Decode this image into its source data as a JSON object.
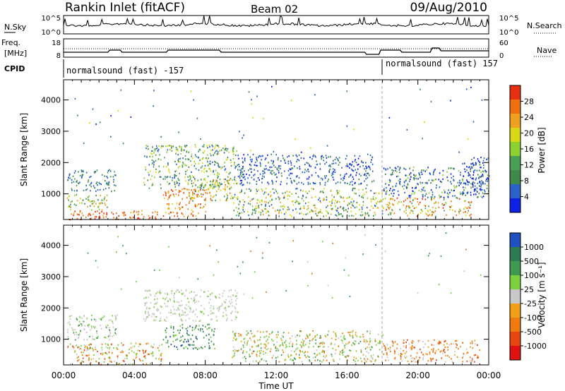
{
  "header": {
    "station": "Rankin Inlet (fitACF)",
    "beam": "Beam 02",
    "date": "09/Aug/2010"
  },
  "noise_panel": {
    "left_label": "N.Sky",
    "right_label": "N.Search",
    "left_ticks": [
      "10^5",
      "10^0"
    ],
    "right_ticks": [
      "10^5",
      "10^0"
    ]
  },
  "freq_panel": {
    "left_label_1": "Freq.",
    "left_label_2": "[MHz]",
    "right_label": "Nave",
    "left_ticks": [
      "18",
      "8"
    ],
    "right_ticks": [
      "60",
      "0"
    ]
  },
  "cpid_panel": {
    "label": "CPID",
    "segments": [
      {
        "name": "normalsound (fast) -157",
        "start_hour": 0
      },
      {
        "name": "normalsound (fast) 157",
        "start_hour": 18
      }
    ]
  },
  "colors": {
    "power_scale": [
      "#0d22e6",
      "#2a62c8",
      "#3f8a4a",
      "#4aa052",
      "#8bd130",
      "#d8d816",
      "#f0a020",
      "#ee7010",
      "#e83010"
    ],
    "velocity_scale": [
      "#2050c0",
      "#2e7a52",
      "#3e9a4e",
      "#7cd040",
      "#c8c8c8",
      "#f0a018",
      "#ee7a10",
      "#e84510",
      "#e01010"
    ]
  },
  "chart_data": [
    {
      "type": "heatmap",
      "title": "",
      "quantity": "Power",
      "xlabel": "",
      "ylabel": "Slant Range [km]",
      "xlim_hours": [
        0,
        24
      ],
      "ylim_km": [
        180,
        4600
      ],
      "y_ticks": [
        "4000",
        "3000",
        "2000",
        "1000"
      ],
      "colorbar_label": "Power [dB]",
      "colorbar_ticks": [
        "28",
        "24",
        "20",
        "16",
        "12",
        "8",
        "4"
      ],
      "colorbar_range": [
        0,
        32
      ]
    },
    {
      "type": "heatmap",
      "title": "",
      "quantity": "Velocity",
      "xlabel": "Time UT",
      "ylabel": "Slant Range [km]",
      "xlim_hours": [
        0,
        24
      ],
      "ylim_km": [
        180,
        4600
      ],
      "x_ticks": [
        "00:00",
        "04:00",
        "08:00",
        "12:00",
        "16:00",
        "20:00",
        "00:00"
      ],
      "y_ticks": [
        "4000",
        "3000",
        "2000",
        "1000"
      ],
      "colorbar_label": "Velocity [m s⁻¹]",
      "colorbar_ticks": [
        "1000",
        "500",
        "100",
        "25",
        "-25",
        "-100",
        "-500",
        "-1000"
      ]
    }
  ]
}
